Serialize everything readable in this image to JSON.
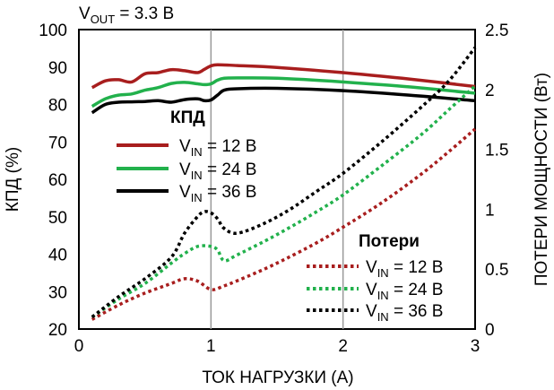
{
  "chart_data": {
    "type": "line",
    "title": "V_OUT = 3.3 В",
    "title_main": "V",
    "title_sub": "OUT",
    "title_rest": " = 3.3 В",
    "xlabel": "ТОК НАГРУЗКИ (А)",
    "ylabel_left": "КПД (%)",
    "ylabel_right": "ПОТЕРИ МОЩНОСТИ (Вт)",
    "xlim": [
      0,
      3
    ],
    "ylim_left": [
      20,
      100
    ],
    "ylim_right": [
      0,
      2.5
    ],
    "x_ticks": [
      "0",
      "1",
      "2",
      "3"
    ],
    "y_ticks_left": [
      "20",
      "30",
      "40",
      "50",
      "60",
      "70",
      "80",
      "90",
      "100"
    ],
    "y_ticks_right": [
      "0",
      "0.5",
      "1",
      "1.5",
      "2",
      "2.5"
    ],
    "grid": "vertical at x = 1, 2",
    "legend_efficiency": {
      "heading": "КПД",
      "placement": "upper-left inside plot",
      "entries": [
        {
          "main": "V",
          "sub": "IN",
          "rest": " = 12 В",
          "color": "#a81e1e",
          "style": "solid"
        },
        {
          "main": "V",
          "sub": "IN",
          "rest": " = 24 В",
          "color": "#22b14c",
          "style": "solid"
        },
        {
          "main": "V",
          "sub": "IN",
          "rest": " = 36 В",
          "color": "#000000",
          "style": "solid"
        }
      ]
    },
    "legend_losses": {
      "heading": "Потери",
      "placement": "lower-right inside plot",
      "entries": [
        {
          "main": "V",
          "sub": "IN",
          "rest": " = 12 В",
          "color": "#a81e1e",
          "style": "dotted"
        },
        {
          "main": "V",
          "sub": "IN",
          "rest": " = 24 В",
          "color": "#22b14c",
          "style": "dotted"
        },
        {
          "main": "V",
          "sub": "IN",
          "rest": " = 36 В",
          "color": "#000000",
          "style": "dotted"
        }
      ]
    },
    "series": [
      {
        "group": "efficiency",
        "axis": "left",
        "color": "#a81e1e",
        "style": "solid",
        "points": [
          [
            0.1,
            84.5
          ],
          [
            0.2,
            86.3
          ],
          [
            0.3,
            86.6
          ],
          [
            0.4,
            86.0
          ],
          [
            0.5,
            88.2
          ],
          [
            0.6,
            88.5
          ],
          [
            0.7,
            89.3
          ],
          [
            0.8,
            89.0
          ],
          [
            0.9,
            88.5
          ],
          [
            0.95,
            89.4
          ],
          [
            1.0,
            90.3
          ],
          [
            1.05,
            90.6
          ],
          [
            1.2,
            90.4
          ],
          [
            1.5,
            89.9
          ],
          [
            2.0,
            88.5
          ],
          [
            2.5,
            86.8
          ],
          [
            3.0,
            84.8
          ]
        ]
      },
      {
        "group": "efficiency",
        "axis": "left",
        "color": "#22b14c",
        "style": "solid",
        "points": [
          [
            0.1,
            79.5
          ],
          [
            0.2,
            81.5
          ],
          [
            0.3,
            82.5
          ],
          [
            0.4,
            82.8
          ],
          [
            0.5,
            83.8
          ],
          [
            0.6,
            84.5
          ],
          [
            0.7,
            85.6
          ],
          [
            0.8,
            85.9
          ],
          [
            0.9,
            85.5
          ],
          [
            0.95,
            85.3
          ],
          [
            1.0,
            85.5
          ],
          [
            1.05,
            86.5
          ],
          [
            1.1,
            87.0
          ],
          [
            1.2,
            87.1
          ],
          [
            1.5,
            87.0
          ],
          [
            2.0,
            86.0
          ],
          [
            2.5,
            84.7
          ],
          [
            3.0,
            83.0
          ]
        ]
      },
      {
        "group": "efficiency",
        "axis": "left",
        "color": "#000000",
        "style": "solid",
        "points": [
          [
            0.1,
            77.8
          ],
          [
            0.2,
            80.0
          ],
          [
            0.3,
            80.6
          ],
          [
            0.4,
            80.7
          ],
          [
            0.5,
            80.8
          ],
          [
            0.6,
            81.0
          ],
          [
            0.7,
            80.6
          ],
          [
            0.8,
            81.3
          ],
          [
            0.9,
            81.5
          ],
          [
            0.95,
            81.0
          ],
          [
            1.0,
            81.2
          ],
          [
            1.05,
            82.5
          ],
          [
            1.1,
            83.8
          ],
          [
            1.2,
            84.2
          ],
          [
            1.5,
            84.3
          ],
          [
            2.0,
            83.7
          ],
          [
            2.5,
            82.5
          ],
          [
            3.0,
            81.0
          ]
        ]
      },
      {
        "group": "losses",
        "axis": "right",
        "color": "#a81e1e",
        "style": "dotted",
        "points": [
          [
            0.1,
            0.08
          ],
          [
            0.3,
            0.2
          ],
          [
            0.5,
            0.3
          ],
          [
            0.7,
            0.38
          ],
          [
            0.8,
            0.42
          ],
          [
            0.9,
            0.4
          ],
          [
            1.0,
            0.33
          ],
          [
            1.1,
            0.36
          ],
          [
            1.3,
            0.45
          ],
          [
            1.5,
            0.55
          ],
          [
            1.8,
            0.72
          ],
          [
            2.0,
            0.85
          ],
          [
            2.3,
            1.06
          ],
          [
            2.6,
            1.3
          ],
          [
            2.8,
            1.48
          ],
          [
            3.0,
            1.67
          ]
        ]
      },
      {
        "group": "losses",
        "axis": "right",
        "color": "#22b14c",
        "style": "dotted",
        "points": [
          [
            0.1,
            0.1
          ],
          [
            0.3,
            0.25
          ],
          [
            0.5,
            0.38
          ],
          [
            0.7,
            0.55
          ],
          [
            0.8,
            0.63
          ],
          [
            0.9,
            0.69
          ],
          [
            1.0,
            0.69
          ],
          [
            1.05,
            0.66
          ],
          [
            1.1,
            0.57
          ],
          [
            1.2,
            0.62
          ],
          [
            1.4,
            0.73
          ],
          [
            1.6,
            0.85
          ],
          [
            1.8,
            0.98
          ],
          [
            2.0,
            1.12
          ],
          [
            2.3,
            1.37
          ],
          [
            2.6,
            1.63
          ],
          [
            2.8,
            1.83
          ],
          [
            3.0,
            2.03
          ]
        ]
      },
      {
        "group": "losses",
        "axis": "right",
        "color": "#000000",
        "style": "dotted",
        "points": [
          [
            0.1,
            0.1
          ],
          [
            0.3,
            0.27
          ],
          [
            0.5,
            0.42
          ],
          [
            0.7,
            0.6
          ],
          [
            0.8,
            0.8
          ],
          [
            0.9,
            0.94
          ],
          [
            0.95,
            0.98
          ],
          [
            1.0,
            0.97
          ],
          [
            1.05,
            0.92
          ],
          [
            1.1,
            0.84
          ],
          [
            1.2,
            0.8
          ],
          [
            1.4,
            0.88
          ],
          [
            1.6,
            1.0
          ],
          [
            1.8,
            1.15
          ],
          [
            2.0,
            1.3
          ],
          [
            2.3,
            1.57
          ],
          [
            2.6,
            1.86
          ],
          [
            2.8,
            2.07
          ],
          [
            3.0,
            2.35
          ]
        ]
      }
    ]
  }
}
